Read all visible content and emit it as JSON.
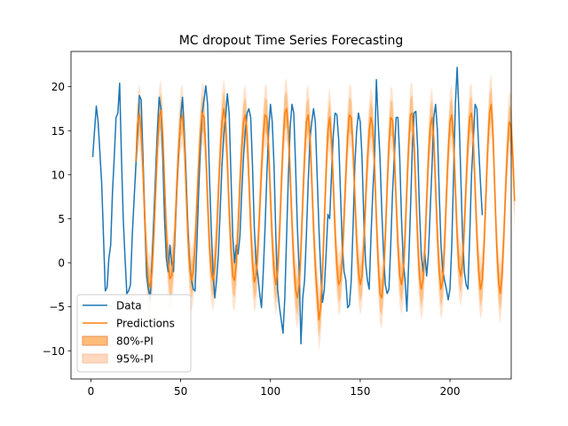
{
  "chart_data": {
    "type": "line",
    "title": "MC dropout Time Series Forecasting",
    "xlabel": "",
    "ylabel": "",
    "xlim": [
      -11.1,
      234.1
    ],
    "ylim": [
      -13.2,
      24.0
    ],
    "xticks": [
      0,
      50,
      100,
      150,
      200
    ],
    "xtick_labels": [
      "0",
      "50",
      "100",
      "150",
      "200"
    ],
    "yticks": [
      -10,
      -5,
      0,
      5,
      10,
      15,
      20
    ],
    "ytick_labels": [
      "−10",
      "−5",
      "0",
      "5",
      "10",
      "15",
      "20"
    ],
    "grid": false,
    "legend_position": "lower-left",
    "colors": {
      "data": "#1f77b4",
      "predictions": "#ff7f0e",
      "pi80_fill": "#ffbb78",
      "pi95_fill": "#ffd9bf"
    },
    "legend": [
      {
        "label": "Data",
        "kind": "line",
        "series": "data"
      },
      {
        "label": "Predictions",
        "kind": "line",
        "series": "predictions"
      },
      {
        "label": "80%-PI",
        "kind": "patch",
        "series": "pi80"
      },
      {
        "label": "95%-PI",
        "kind": "patch",
        "series": "pi95"
      }
    ],
    "data_start_x": 1,
    "pred_start_x": 25,
    "series": [
      {
        "name": "Data",
        "key": "data",
        "values": [
          12.0,
          15.0,
          17.8,
          16.0,
          12.5,
          9.0,
          3.0,
          -3.2,
          -2.8,
          0.5,
          2.0,
          8.0,
          12.0,
          16.5,
          17.0,
          20.4,
          12.0,
          5.0,
          0.5,
          -3.5,
          -3.2,
          -2.5,
          3.0,
          7.0,
          11.0,
          14.5,
          19.0,
          18.5,
          12.0,
          5.0,
          -1.5,
          -3.0,
          -4.0,
          0.0,
          5.0,
          10.0,
          15.0,
          18.8,
          17.5,
          12.0,
          5.0,
          0.5,
          -1.0,
          2.0,
          0.0,
          -1.0,
          4.0,
          9.0,
          13.0,
          16.5,
          18.8,
          15.0,
          10.0,
          4.0,
          0.0,
          -2.0,
          -3.0,
          -3.2,
          2.0,
          8.0,
          13.0,
          17.0,
          18.5,
          20.1,
          18.0,
          10.0,
          4.0,
          -1.0,
          -4.0,
          -2.0,
          1.0,
          6.0,
          11.0,
          14.5,
          16.5,
          19.2,
          17.0,
          10.0,
          3.0,
          0.0,
          2.0,
          1.0,
          3.0,
          8.0,
          12.0,
          15.0,
          17.0,
          17.5,
          16.5,
          11.0,
          4.0,
          0.0,
          -1.5,
          -3.5,
          -5.1,
          -1.0,
          4.0,
          10.0,
          15.0,
          18.0,
          16.0,
          11.0,
          3.0,
          -3.0,
          -5.0,
          -6.5,
          -8.0,
          -4.0,
          3.0,
          10.0,
          15.5,
          18.0,
          17.0,
          11.0,
          4.0,
          -1.0,
          -9.2,
          -4.0,
          -2.0,
          3.0,
          9.0,
          14.0,
          16.0,
          17.5,
          16.0,
          10.0,
          4.0,
          -1.0,
          -4.5,
          -3.0,
          1.0,
          5.5,
          5.0,
          10.0,
          14.5,
          17.0,
          16.8,
          14.0,
          8.0,
          2.0,
          -1.0,
          -2.0,
          -5.1,
          -4.8,
          -2.0,
          4.0,
          11.0,
          15.0,
          17.0,
          16.0,
          12.0,
          5.0,
          0.0,
          -2.0,
          -3.0,
          3.0,
          8.0,
          12.0,
          20.8,
          16.0,
          12.0,
          6.0,
          1.0,
          -2.5,
          -3.5,
          -3.0,
          2.0,
          8.0,
          12.0,
          16.5,
          16.5,
          12.0,
          5.0,
          0.0,
          -2.0,
          -5.5,
          0.0,
          6.0,
          13.0,
          17.0,
          17.2,
          13.0,
          6.0,
          1.0,
          -1.0,
          1.0,
          -1.5,
          1.0,
          6.0,
          11.0,
          16.5,
          18.0,
          15.0,
          8.0,
          2.0,
          -1.0,
          -2.0,
          -3.0,
          -4.2,
          -3.0,
          2.0,
          10.0,
          18.0,
          22.2,
          17.0,
          10.0,
          3.0,
          -1.0,
          -2.5,
          -3.0,
          3.0,
          10.0,
          14.0,
          18.0,
          17.5,
          13.0,
          9.0,
          5.4
        ]
      },
      {
        "name": "Predictions",
        "key": "predictions",
        "values": [
          11.5,
          15.8,
          16.9,
          15.0,
          10.5,
          5.0,
          0.5,
          -2.2,
          -2.8,
          -1.0,
          3.0,
          8.0,
          13.0,
          16.5,
          17.3,
          14.5,
          9.0,
          3.5,
          0.0,
          -1.8,
          -1.5,
          0.5,
          4.5,
          9.5,
          13.5,
          16.2,
          16.8,
          14.0,
          8.5,
          3.0,
          -0.5,
          -2.0,
          -1.0,
          2.0,
          6.5,
          11.0,
          14.8,
          17.0,
          16.5,
          12.5,
          7.0,
          2.0,
          -1.0,
          -2.0,
          -0.5,
          3.0,
          8.0,
          12.5,
          16.0,
          17.5,
          16.0,
          11.5,
          6.0,
          1.5,
          -1.5,
          -2.0,
          0.0,
          4.0,
          9.0,
          13.0,
          16.0,
          16.8,
          14.5,
          9.5,
          4.0,
          0.0,
          -2.2,
          -1.5,
          1.5,
          6.0,
          10.5,
          14.5,
          16.8,
          16.5,
          13.0,
          7.5,
          2.5,
          -1.0,
          -2.5,
          -1.0,
          3.0,
          8.5,
          13.5,
          17.0,
          17.5,
          15.0,
          10.0,
          4.5,
          0.0,
          -3.0,
          -4.0,
          -2.5,
          1.5,
          7.0,
          12.0,
          16.0,
          16.8,
          14.5,
          9.5,
          4.0,
          -0.5,
          -3.5,
          -6.5,
          -5.0,
          -1.0,
          4.5,
          10.5,
          15.0,
          16.5,
          14.0,
          9.0,
          3.5,
          -0.5,
          -2.5,
          -2.0,
          0.5,
          5.0,
          10.0,
          14.5,
          16.8,
          16.5,
          13.0,
          7.5,
          2.5,
          -1.0,
          -2.5,
          -1.5,
          2.0,
          7.0,
          11.5,
          15.0,
          16.5,
          15.5,
          11.0,
          5.0,
          0.0,
          -3.5,
          -4.0,
          -1.5,
          3.0,
          8.5,
          13.5,
          16.5,
          16.2,
          12.5,
          7.0,
          2.0,
          -1.5,
          -2.5,
          -1.0,
          3.0,
          8.5,
          13.5,
          16.8,
          17.0,
          13.5,
          8.0,
          2.5,
          -1.5,
          -3.0,
          -2.0,
          1.5,
          7.0,
          12.0,
          15.5,
          16.5,
          14.0,
          8.5,
          3.0,
          -1.0,
          -3.0,
          -2.0,
          2.0,
          7.5,
          12.5,
          16.0,
          16.8,
          14.0,
          8.5,
          3.0,
          -0.5,
          -1.5,
          0.0,
          4.0,
          9.0,
          13.5,
          16.5,
          17.0,
          14.0,
          8.5,
          3.0,
          -1.0,
          -3.0,
          -2.0,
          2.0,
          7.5,
          13.0,
          17.0,
          18.0,
          14.5,
          8.0,
          2.0,
          -2.0,
          -3.5,
          -1.5,
          3.0,
          8.5,
          13.0,
          16.0,
          15.5,
          12.0,
          7.0
        ]
      }
    ],
    "pi80_halfwidth": 2.0,
    "pi95_halfwidth": 3.5
  }
}
